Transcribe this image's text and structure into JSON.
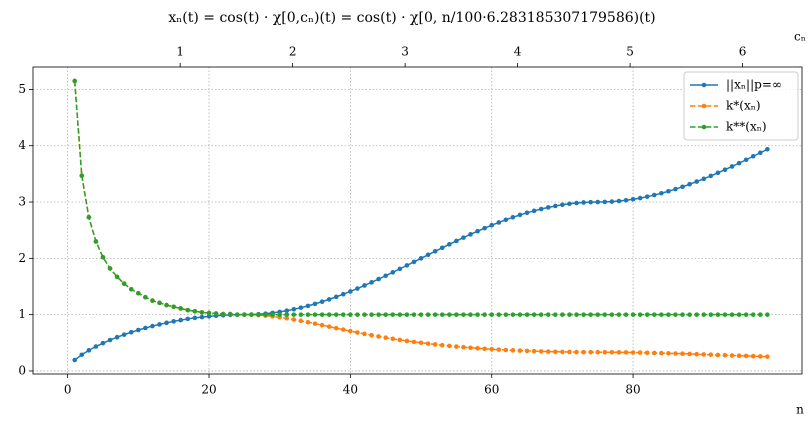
{
  "chart_data": {
    "type": "line",
    "title": "xₙ(t) = cos(t) · χ[0,cₙ)(t) = cos(t) · χ[0, n/100·6.283185307179586)(t)",
    "x_label": "n",
    "x2_label": "cₙ",
    "x": [
      1,
      2,
      3,
      4,
      5,
      6,
      7,
      8,
      9,
      10,
      11,
      12,
      13,
      14,
      15,
      16,
      17,
      18,
      19,
      20,
      21,
      22,
      23,
      24,
      25,
      26,
      27,
      28,
      29,
      30,
      31,
      32,
      33,
      34,
      35,
      36,
      37,
      38,
      39,
      40,
      41,
      42,
      43,
      44,
      45,
      46,
      47,
      48,
      49,
      50,
      51,
      52,
      53,
      54,
      55,
      56,
      57,
      58,
      59,
      60,
      61,
      62,
      63,
      64,
      65,
      66,
      67,
      68,
      69,
      70,
      71,
      72,
      73,
      74,
      75,
      76,
      77,
      78,
      79,
      80,
      81,
      82,
      83,
      84,
      85,
      86,
      87,
      88,
      89,
      90,
      91,
      92,
      93,
      94,
      95,
      96,
      97,
      98,
      99
    ],
    "series": [
      {
        "name": "||xₙ||p=∞",
        "color": "#1f77b4",
        "linestyle": "solid",
        "values": [
          0.194,
          0.288,
          0.366,
          0.434,
          0.494,
          0.549,
          0.599,
          0.645,
          0.688,
          0.727,
          0.763,
          0.797,
          0.827,
          0.855,
          0.881,
          0.903,
          0.924,
          0.942,
          0.957,
          0.97,
          0.981,
          0.989,
          0.995,
          0.999,
          1.0,
          1.002,
          1.008,
          1.018,
          1.031,
          1.049,
          1.07,
          1.095,
          1.124,
          1.156,
          1.191,
          1.23,
          1.271,
          1.316,
          1.363,
          1.412,
          1.464,
          1.518,
          1.574,
          1.632,
          1.691,
          1.751,
          1.813,
          1.875,
          1.937,
          2.0,
          2.063,
          2.125,
          2.187,
          2.249,
          2.309,
          2.368,
          2.426,
          2.482,
          2.536,
          2.588,
          2.637,
          2.685,
          2.729,
          2.771,
          2.809,
          2.844,
          2.876,
          2.905,
          2.93,
          2.951,
          2.969,
          2.982,
          2.992,
          2.998,
          3.0,
          3.002,
          3.008,
          3.018,
          3.031,
          3.049,
          3.07,
          3.095,
          3.124,
          3.156,
          3.191,
          3.23,
          3.271,
          3.316,
          3.363,
          3.412,
          3.464,
          3.518,
          3.574,
          3.632,
          3.691,
          3.751,
          3.813,
          3.875,
          3.937
        ]
      },
      {
        "name": "k*(xₙ)",
        "color": "#ff7f0e",
        "linestyle": "dashed",
        "values": [
          5.15,
          3.47,
          2.73,
          2.3,
          2.02,
          1.82,
          1.67,
          1.55,
          1.45,
          1.38,
          1.31,
          1.25,
          1.21,
          1.17,
          1.14,
          1.11,
          1.08,
          1.06,
          1.04,
          1.03,
          1.02,
          1.01,
          1.01,
          1.0,
          1.0,
          0.998,
          0.992,
          0.982,
          0.97,
          0.953,
          0.935,
          0.913,
          0.89,
          0.865,
          0.84,
          0.813,
          0.787,
          0.76,
          0.734,
          0.708,
          0.683,
          0.659,
          0.635,
          0.613,
          0.591,
          0.571,
          0.552,
          0.533,
          0.516,
          0.5,
          0.485,
          0.471,
          0.457,
          0.445,
          0.433,
          0.422,
          0.412,
          0.403,
          0.394,
          0.386,
          0.379,
          0.372,
          0.366,
          0.361,
          0.356,
          0.352,
          0.348,
          0.344,
          0.341,
          0.339,
          0.337,
          0.335,
          0.334,
          0.334,
          0.333,
          0.333,
          0.332,
          0.331,
          0.33,
          0.328,
          0.326,
          0.323,
          0.32,
          0.317,
          0.313,
          0.31,
          0.306,
          0.302,
          0.297,
          0.293,
          0.289,
          0.284,
          0.28,
          0.275,
          0.271,
          0.267,
          0.262,
          0.258,
          0.254
        ]
      },
      {
        "name": "k**(xₙ)",
        "color": "#2ca02c",
        "linestyle": "dashed",
        "values": [
          5.15,
          3.47,
          2.73,
          2.3,
          2.02,
          1.82,
          1.67,
          1.55,
          1.45,
          1.38,
          1.31,
          1.25,
          1.21,
          1.17,
          1.14,
          1.11,
          1.08,
          1.06,
          1.04,
          1.03,
          1.02,
          1.01,
          1.01,
          1.0,
          1.0,
          1,
          1,
          1,
          1,
          1,
          1,
          1,
          1,
          1,
          1,
          1,
          1,
          1,
          1,
          1,
          1,
          1,
          1,
          1,
          1,
          1,
          1,
          1,
          1,
          1,
          1,
          1,
          1,
          1,
          1,
          1,
          1,
          1,
          1,
          1,
          1,
          1,
          1,
          1,
          1,
          1,
          1,
          1,
          1,
          1,
          1,
          1,
          1,
          1,
          1,
          1,
          1,
          1,
          1,
          1,
          1,
          1,
          1,
          1,
          1,
          1,
          1,
          1,
          1,
          1,
          1,
          1,
          1,
          1,
          1,
          1,
          1,
          1,
          1
        ]
      }
    ],
    "xlim": [
      -4.9,
      103.9
    ],
    "xticks": [
      0,
      20,
      40,
      60,
      80
    ],
    "x2lim": [
      -0.308,
      6.528
    ],
    "x2ticks": [
      1,
      2,
      3,
      4,
      5,
      6
    ],
    "ylim": [
      -0.054,
      5.398
    ],
    "yticks": [
      0,
      1,
      2,
      3,
      4,
      5
    ],
    "grid": true,
    "legend": "upper right"
  }
}
